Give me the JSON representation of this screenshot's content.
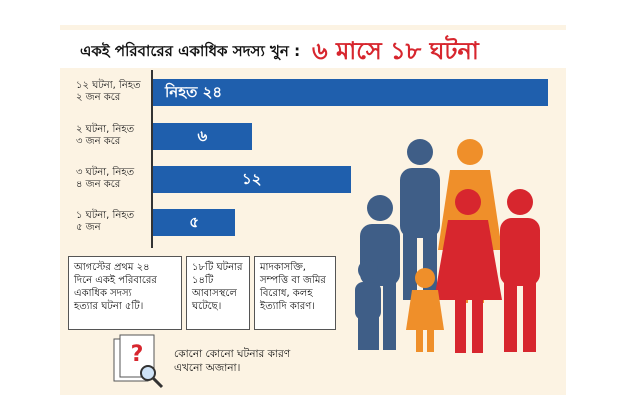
{
  "chart_data": {
    "type": "bar",
    "orientation": "horizontal",
    "title": "একই পরিবারের একাধিক সদস্য খুন :",
    "subtitle": "৬ মাসে ১৮ ঘটনা",
    "categories": [
      "১২ ঘটনা, নিহত\n২ জন করে",
      "২ ঘটনা, নিহত\n৩ জন করে",
      "৩ ঘটনা, নিহত\n৪ জন করে",
      "১ ঘটনা, নিহত\n৫ জন"
    ],
    "values": [
      24,
      6,
      12,
      5
    ],
    "value_labels": [
      "নিহত ২৪",
      "৬",
      "১২",
      "৫"
    ],
    "color": "#1f5fad",
    "xlim": [
      0,
      24
    ],
    "notes": [
      "আগস্টের প্রথম ২৪\nদিনে একই পরিবারের\nএকাধিক সদস্য\nহত্যার ঘটনা ৫টি।",
      "১৮টি ঘটনার\n১৪টি\nআবাসস্থলে\nঘটেছে।",
      "মাদকাসক্তি,\nসম্পত্তি বা জমির\nবিরোধ, কলহ\nইত্যাদি কারণ।",
      "কোনো কোনো ঘটনার কারণ\nএখনো অজানা।"
    ]
  }
}
